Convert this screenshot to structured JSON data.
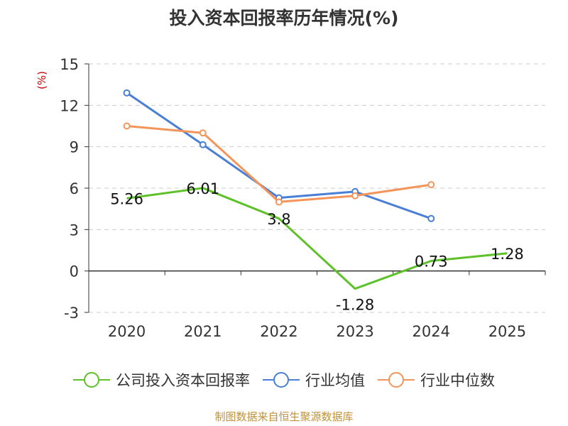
{
  "chart_data": {
    "type": "line",
    "title": "投入资本回报率历年情况(%)",
    "ylabel": "(%)",
    "categories": [
      "2020",
      "2021",
      "2022",
      "2023",
      "2024",
      "2025"
    ],
    "ylim": [
      -3,
      15
    ],
    "yticks": [
      -3,
      0,
      3,
      6,
      9,
      12,
      15
    ],
    "grid": true,
    "legend_position": "bottom",
    "series": [
      {
        "name": "公司投入资本回报率",
        "color": "#5ec12a",
        "values": [
          5.26,
          6.01,
          3.8,
          -1.28,
          0.73,
          1.28
        ],
        "labels": [
          "5.26",
          "6.01",
          "3.8",
          "-1.28",
          "0.73",
          "1.28"
        ]
      },
      {
        "name": "行业均值",
        "color": "#4a7fd6",
        "values": [
          12.9,
          9.15,
          5.3,
          5.75,
          3.8,
          null
        ]
      },
      {
        "name": "行业中位数",
        "color": "#f3955a",
        "values": [
          10.5,
          10.0,
          5.0,
          5.45,
          6.25,
          null
        ]
      }
    ]
  },
  "source": "制图数据来自恒生聚源数据库"
}
